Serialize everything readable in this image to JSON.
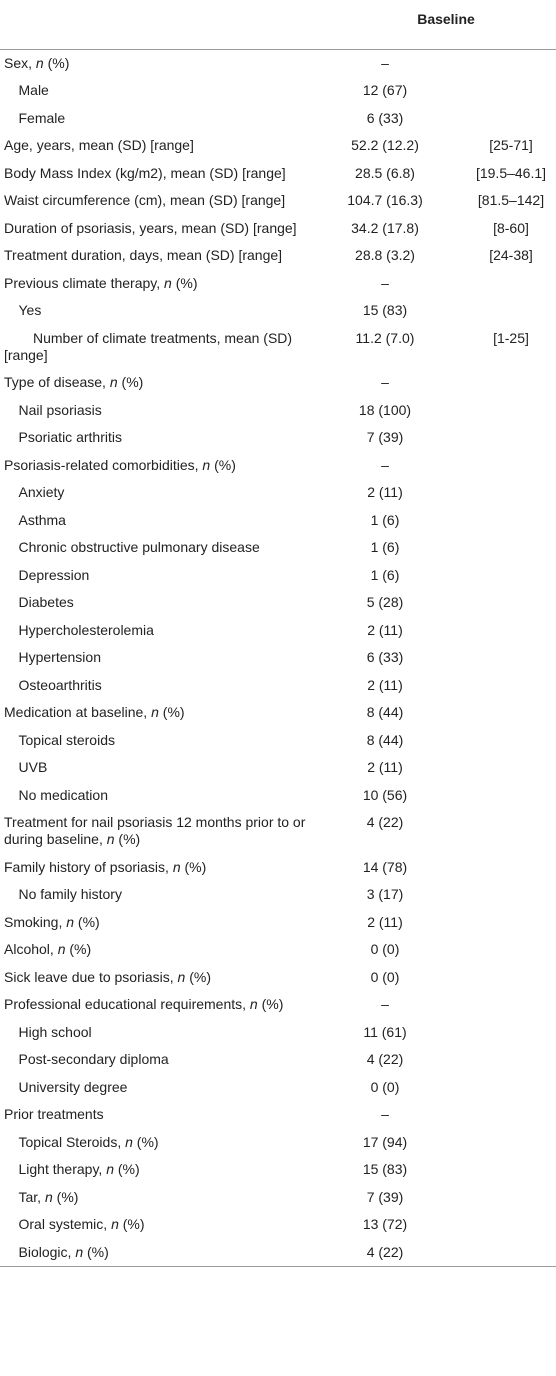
{
  "table": {
    "header": [
      "",
      "Baseline"
    ],
    "rows": [
      {
        "label": "Sex, n (%)",
        "value": "–",
        "rows": [
          {
            "label": "Male",
            "value": "12 (67)"
          },
          {
            "label": "Female",
            "value": "6 (33)"
          }
        ]
      },
      {
        "label": "Age, years, mean (SD) [range]",
        "value": "52.2 (12.2)",
        "range": "[25-71]"
      },
      {
        "label": "Body Mass Index (kg/m2), mean (SD) [range]",
        "value": "28.5 (6.8)",
        "range": "[19.5–46.1]"
      },
      {
        "label": "Waist circumference (cm), mean (SD) [range]",
        "value": "104.7 (16.3)",
        "range": "[81.5–142]"
      },
      {
        "label": "Duration of psoriasis, years, mean (SD) [range]",
        "value": "34.2 (17.8)",
        "range": "[8-60]"
      },
      {
        "label": "Treatment duration, days, mean (SD) [range]",
        "value": "28.8 (3.2)",
        "range": "[24-38]"
      },
      {
        "label": "Previous climate therapy, n (%)",
        "value": "–",
        "rows": [
          {
            "label": "Yes",
            "value": "15 (83)",
            "rows": [
              {
                "label": "Number of climate treatments, mean (SD) [range]",
                "value": "11.2 (7.0)",
                "range": "[1-25]"
              }
            ]
          }
        ]
      },
      {
        "label": "Type of disease, n (%)",
        "value": "–",
        "rows": [
          {
            "label": "Nail psoriasis",
            "value": "18 (100)"
          },
          {
            "label": "Psoriatic arthritis",
            "value": "7 (39)"
          }
        ]
      },
      {
        "label": "Psoriasis-related comorbidities, n (%)",
        "value": "–",
        "rows": [
          {
            "label": "Anxiety",
            "value": "2 (11)"
          },
          {
            "label": "Asthma",
            "value": "1 (6)"
          },
          {
            "label": "Chronic obstructive pulmonary disease",
            "value": "1 (6)"
          },
          {
            "label": "Depression",
            "value": "1 (6)"
          },
          {
            "label": "Diabetes",
            "value": "5 (28)"
          },
          {
            "label": "Hypercholesterolemia",
            "value": "2 (11)"
          },
          {
            "label": "Hypertension",
            "value": "6 (33)"
          },
          {
            "label": "Osteoarthritis",
            "value": "2 (11)"
          }
        ]
      },
      {
        "label": "Medication at baseline, n (%)",
        "value": "8 (44)",
        "rows": [
          {
            "label": "Topical steroids",
            "value": "8 (44)"
          },
          {
            "label": "UVB",
            "value": "2 (11)"
          },
          {
            "label": "No medication",
            "value": "10 (56)"
          }
        ]
      },
      {
        "label": "Treatment for nail psoriasis 12 months prior to or during baseline, n (%)",
        "value": "4 (22)"
      },
      {
        "label": "Family history of psoriasis, n (%)",
        "value": "14 (78)",
        "rows": [
          {
            "label": "No family history",
            "value": "3 (17)"
          }
        ]
      },
      {
        "label": "Smoking, n (%)",
        "value": "2 (11)"
      },
      {
        "label": "Alcohol, n (%)",
        "value": "0 (0)"
      },
      {
        "label": "Sick leave due to psoriasis, n (%)",
        "value": "0 (0)"
      },
      {
        "label": "Professional educational requirements, n (%)",
        "value": "–",
        "rows": [
          {
            "label": "High school",
            "value": "11 (61)"
          },
          {
            "label": "Post-secondary diploma",
            "value": "4 (22)"
          },
          {
            "label": "University degree",
            "value": "0 (0)"
          }
        ]
      },
      {
        "label": "Prior treatments",
        "value": "–",
        "rows": [
          {
            "label": "Topical Steroids, n (%)",
            "value": "17 (94)"
          },
          {
            "label": "Light therapy, n (%)",
            "value": "15 (83)"
          },
          {
            "label": "Tar, n (%)",
            "value": "7 (39)"
          },
          {
            "label": "Oral systemic, n (%)",
            "value": "13 (72)"
          },
          {
            "label": "Biologic, n (%)",
            "value": "4 (22)"
          }
        ]
      }
    ]
  }
}
